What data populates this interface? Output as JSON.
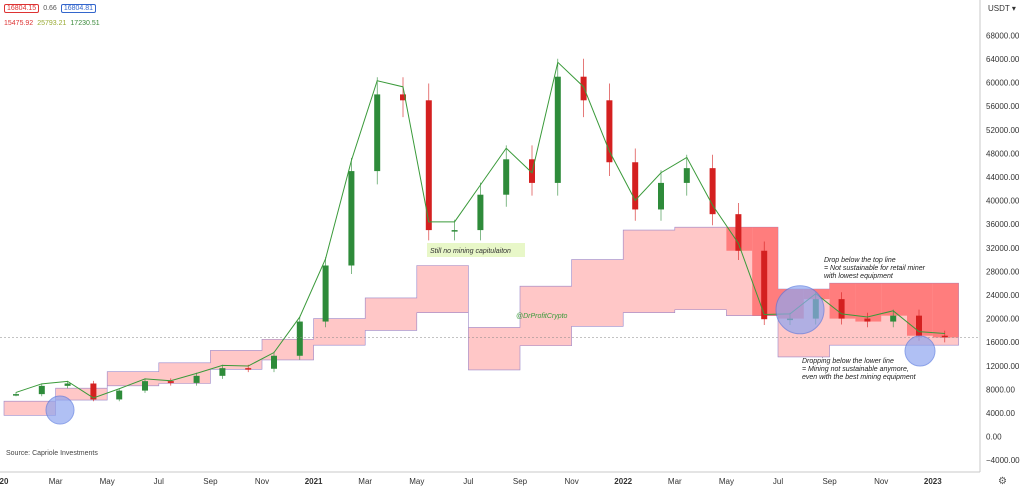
{
  "header": {
    "values": [
      "16804.15",
      "0.66",
      "16804.81"
    ],
    "values2": [
      "15475.92",
      "25793.21",
      "17230.51"
    ]
  },
  "currency_label": "USDT",
  "colors": {
    "up": "#2e8b3a",
    "down": "#d42020",
    "band_light": "#ffc7c7",
    "band_dark": "#ff7070",
    "overlay_line": "#3a9a3a",
    "circle": "#8fa6f0",
    "annotation_bg": "#e8f7c8"
  },
  "chart_data": {
    "type": "line",
    "title": "",
    "ylim": [
      -6000,
      74000
    ],
    "y_ticks": [
      "68000.00",
      "64000.00",
      "60000.00",
      "56000.00",
      "52000.00",
      "48000.00",
      "44000.00",
      "40000.00",
      "36000.00",
      "32000.00",
      "28000.00",
      "24000.00",
      "20000.00",
      "16000.00",
      "12000.00",
      "8000.00",
      "4000.00",
      "0.00",
      "−4000.00"
    ],
    "y_tick_values": [
      68000,
      64000,
      60000,
      56000,
      52000,
      48000,
      44000,
      40000,
      36000,
      32000,
      28000,
      24000,
      20000,
      16000,
      12000,
      8000,
      4000,
      0,
      -4000
    ],
    "x_ticks": [
      "20",
      "Mar",
      "May",
      "Jul",
      "Sep",
      "Nov",
      "2021",
      "Mar",
      "May",
      "Jul",
      "Sep",
      "Nov",
      "2022",
      "Mar",
      "May",
      "Jul",
      "Sep",
      "Nov",
      "2023"
    ],
    "x_tick_index": [
      0,
      2,
      4,
      6,
      8,
      10,
      12,
      14,
      16,
      18,
      20,
      22,
      24,
      26,
      28,
      30,
      32,
      34,
      36
    ],
    "current_price": 16804.15,
    "series": [
      {
        "values": [
          7200,
          8600,
          9000,
          6300,
          7800,
          9400,
          9100,
          10300,
          11600,
          11500,
          13700,
          19500,
          29000,
          45000,
          58000,
          57000,
          35000,
          35000,
          41000,
          47000,
          43000,
          61000,
          57000,
          46500,
          38500,
          43000,
          45500,
          37700,
          31500,
          19900,
          20000,
          23300,
          20000,
          19500,
          20500,
          17100,
          16800
        ]
      }
    ],
    "bands": [
      {
        "values": [
          [
            3600,
            6000
          ],
          [
            3600,
            6000
          ],
          [
            6200,
            8200
          ],
          [
            6200,
            8200
          ],
          [
            8600,
            11000
          ],
          [
            8600,
            11000
          ],
          [
            9000,
            12500
          ],
          [
            9000,
            12500
          ],
          [
            11400,
            14600
          ],
          [
            11400,
            14600
          ],
          [
            13000,
            16500
          ],
          [
            13000,
            16500
          ],
          [
            15500,
            20000
          ],
          [
            15500,
            20000
          ],
          [
            18000,
            23500
          ],
          [
            18000,
            23500
          ],
          [
            21000,
            29000
          ],
          [
            21000,
            29000
          ],
          [
            11300,
            18500
          ],
          [
            11300,
            18500
          ],
          [
            15400,
            25500
          ],
          [
            15400,
            25500
          ],
          [
            18700,
            30000
          ],
          [
            18700,
            30000
          ],
          [
            21000,
            35000
          ],
          [
            21000,
            35000
          ],
          [
            21500,
            35500
          ],
          [
            21500,
            35500
          ],
          [
            20500,
            35500
          ],
          [
            20500,
            35500
          ],
          [
            13500,
            25000
          ],
          [
            13500,
            25000
          ],
          [
            15500,
            26000
          ],
          [
            15500,
            26000
          ],
          [
            15500,
            26000
          ],
          [
            15500,
            26000
          ],
          [
            15500,
            26000
          ]
        ]
      }
    ],
    "annotations": [
      "Still no mining capitulaiton",
      "@DrProfitCrypto",
      "Drop below the top line",
      "= Not sustainable for retail miner",
      "with lowest equipment",
      "Dropping below the lower line",
      "= Mining not sustainable anymore,",
      "even with the best mining equipment",
      "Source: Capriole Investments"
    ]
  }
}
